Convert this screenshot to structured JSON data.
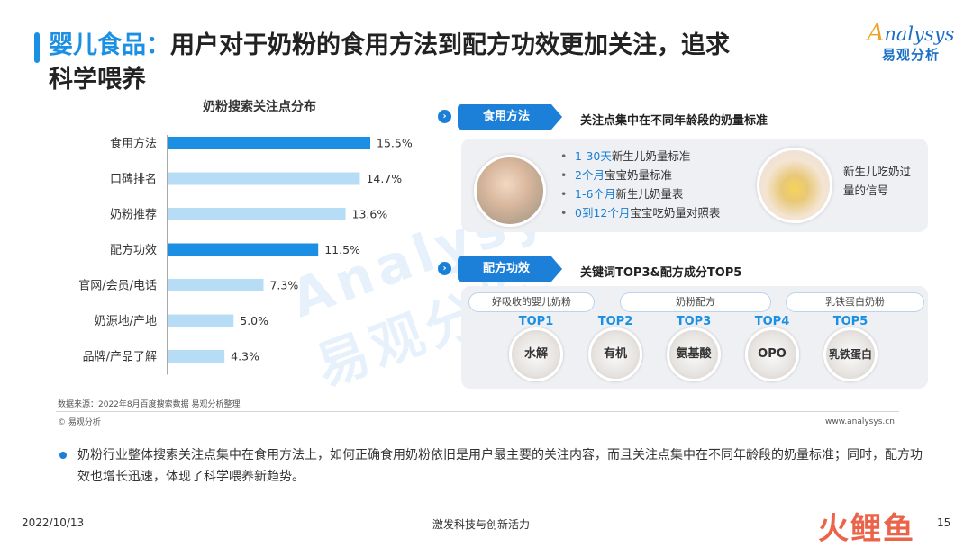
{
  "title": {
    "prefix": "婴儿食品：",
    "line1_rest": "用户对于奶粉的食用方法到配方功效更加关注，追求",
    "line2": "科学喂养"
  },
  "logo": {
    "en": "nalysys",
    "en_initial": "A",
    "cn": "易观分析"
  },
  "watermark": {
    "en": "Analysys",
    "cn": "易观分析"
  },
  "chart_data": {
    "type": "bar",
    "orientation": "horizontal",
    "title": "奶粉搜索关注点分布",
    "categories": [
      "食用方法",
      "口碑排名",
      "奶粉推荐",
      "配方功效",
      "官网/会员/电话",
      "奶源地/产地",
      "品牌/产品了解"
    ],
    "values": [
      15.5,
      14.7,
      13.6,
      11.5,
      7.3,
      5.0,
      4.3
    ],
    "value_labels": [
      "15.5%",
      "14.7%",
      "13.6%",
      "11.5%",
      "7.3%",
      "5.0%",
      "4.3%"
    ],
    "highlight": [
      true,
      false,
      false,
      true,
      false,
      false,
      false
    ],
    "colors": {
      "highlight": "#1a8fe3",
      "normal": "#b7dcf5",
      "axis": "#555555"
    },
    "grid": false
  },
  "section1": {
    "icon": "chevron-right-icon",
    "label": "食用方法",
    "desc": "关注点集中在不同年龄段的奶量标准",
    "bullets": [
      {
        "hl": "1-30天",
        "rest": "新生儿奶量标准"
      },
      {
        "hl": "2个月",
        "rest": "宝宝奶量标准"
      },
      {
        "hl": "1-6个月",
        "rest": "新生儿奶量表"
      },
      {
        "hl": "0到12个月",
        "rest": "宝宝吃奶量对照表"
      }
    ],
    "signal": "新生儿吃奶过量的信号"
  },
  "section2": {
    "icon": "chevron-right-icon",
    "label": "配方功效",
    "desc": "关键词TOP3&配方成分TOP5",
    "keywords": [
      "好吸收的婴儿奶粉",
      "奶粉配方",
      "乳铁蛋白奶粉"
    ],
    "tops": [
      {
        "rank": "TOP1",
        "name": "水解"
      },
      {
        "rank": "TOP2",
        "name": "有机"
      },
      {
        "rank": "TOP3",
        "name": "氨基酸"
      },
      {
        "rank": "TOP4",
        "name": "OPO"
      },
      {
        "rank": "TOP5",
        "name": "乳铁蛋白"
      }
    ]
  },
  "source": "数据来源：2022年8月百度搜索数据 易观分析整理",
  "copyright": "© 易观分析",
  "website": "www.analysys.cn",
  "summary": "奶粉行业整体搜索关注点集中在食用方法上，如何正确食用奶粉依旧是用户最主要的关注内容，而且关注点集中在不同年龄段的奶量标准；同时，配方功效也增长迅速，体现了科学喂养新趋势。",
  "footer": {
    "date": "2022/10/13",
    "slogan": "激发科技与创新活力",
    "page": "15",
    "brand": "火鲤鱼"
  }
}
